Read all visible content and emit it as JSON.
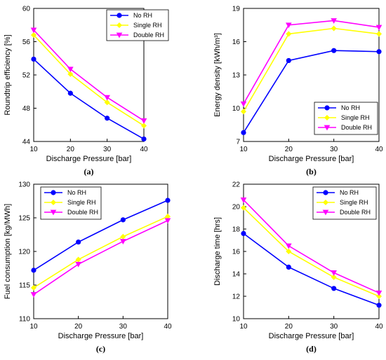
{
  "chart_data": [
    {
      "type": "line",
      "caption": "(a)",
      "xlabel": "Discharge Pressure [bar]",
      "ylabel": "Roundtrip efficiency [%]",
      "x": [
        10,
        20,
        30,
        40
      ],
      "xlim": [
        10,
        40
      ],
      "xticks": [
        "10",
        "20",
        "30",
        "40"
      ],
      "ylim": [
        44,
        60
      ],
      "yticks": [
        "44",
        "48",
        "52",
        "56",
        "60"
      ],
      "legend_position": "top-right",
      "series": [
        {
          "name": "No RH",
          "color": "#0000ff",
          "marker": "circle",
          "values": [
            53.9,
            49.8,
            46.8,
            44.3
          ]
        },
        {
          "name": "Single RH",
          "color": "#ffff00",
          "marker": "diamond",
          "values": [
            56.8,
            52.1,
            48.7,
            45.9
          ]
        },
        {
          "name": "Double RH",
          "color": "#ff00ff",
          "marker": "triangle-down",
          "values": [
            57.4,
            52.7,
            49.3,
            46.5
          ]
        }
      ]
    },
    {
      "type": "line",
      "caption": "(b)",
      "xlabel": "Discharge Pressure [bar]",
      "ylabel": "Energy density [kWh/m³]",
      "x": [
        10,
        20,
        30,
        40
      ],
      "xlim": [
        10,
        40
      ],
      "xticks": [
        "10",
        "20",
        "30",
        "40"
      ],
      "ylim": [
        7,
        19
      ],
      "yticks": [
        "7",
        "10",
        "13",
        "16",
        "19"
      ],
      "legend_position": "bottom-right",
      "series": [
        {
          "name": "No RH",
          "color": "#0000ff",
          "marker": "circle",
          "values": [
            7.8,
            14.3,
            15.2,
            15.1
          ]
        },
        {
          "name": "Single RH",
          "color": "#ffff00",
          "marker": "diamond",
          "values": [
            9.7,
            16.7,
            17.2,
            16.7
          ]
        },
        {
          "name": "Double RH",
          "color": "#ff00ff",
          "marker": "triangle-down",
          "values": [
            10.4,
            17.5,
            17.9,
            17.3
          ]
        }
      ]
    },
    {
      "type": "line",
      "caption": "(c)",
      "xlabel": "Discharge Pressure [bar]",
      "ylabel": "Fuel consumption [kg/MWh]",
      "x": [
        10,
        20,
        30,
        40
      ],
      "xlim": [
        10,
        40
      ],
      "xticks": [
        "10",
        "20",
        "30",
        "40"
      ],
      "ylim": [
        110,
        130
      ],
      "yticks": [
        "110",
        "115",
        "120",
        "125",
        "130"
      ],
      "legend_position": "top-left",
      "series": [
        {
          "name": "No RH",
          "color": "#0000ff",
          "marker": "circle",
          "values": [
            117.2,
            121.4,
            124.7,
            127.6
          ]
        },
        {
          "name": "Single RH",
          "color": "#ffff00",
          "marker": "diamond",
          "values": [
            114.6,
            118.8,
            122.2,
            125.2
          ]
        },
        {
          "name": "Double RH",
          "color": "#ff00ff",
          "marker": "triangle-down",
          "values": [
            113.6,
            118.1,
            121.5,
            124.6
          ]
        }
      ]
    },
    {
      "type": "line",
      "caption": "(d)",
      "xlabel": "Discharge Pressure [bar]",
      "ylabel": "Discharge time [hrs]",
      "x": [
        10,
        20,
        30,
        40
      ],
      "xlim": [
        10,
        40
      ],
      "xticks": [
        "10",
        "20",
        "30",
        "40"
      ],
      "ylim": [
        10,
        22
      ],
      "yticks": [
        "10",
        "12",
        "14",
        "16",
        "18",
        "20",
        "22"
      ],
      "legend_position": "top-right",
      "series": [
        {
          "name": "No RH",
          "color": "#0000ff",
          "marker": "circle",
          "values": [
            17.6,
            14.6,
            12.7,
            11.2
          ]
        },
        {
          "name": "Single RH",
          "color": "#ffff00",
          "marker": "diamond",
          "values": [
            19.9,
            16.0,
            13.7,
            12.0
          ]
        },
        {
          "name": "Double RH",
          "color": "#ff00ff",
          "marker": "triangle-down",
          "values": [
            20.6,
            16.5,
            14.1,
            12.3
          ]
        }
      ]
    }
  ]
}
